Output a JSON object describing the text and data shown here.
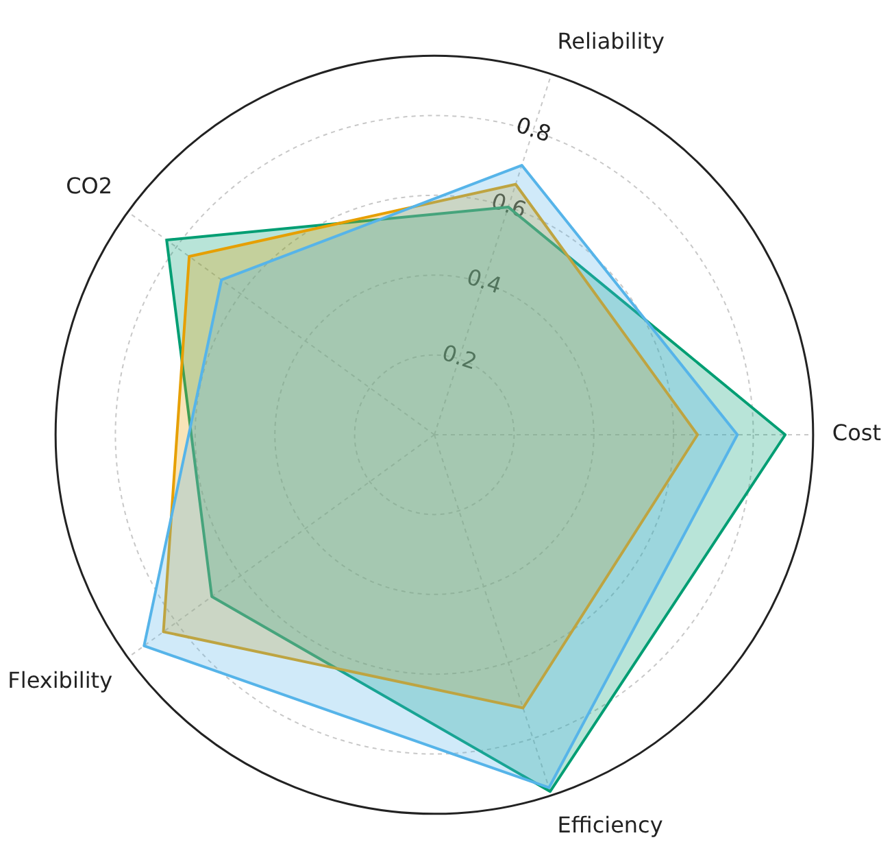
{
  "chart_data": {
    "type": "radar",
    "categories": [
      "Reliability",
      "Cost",
      "Efficiency",
      "Flexibility",
      "CO2"
    ],
    "series": [
      {
        "color": "#56b4e9",
        "values": [
          0.71,
          0.76,
          0.93,
          0.9,
          0.66
        ]
      },
      {
        "color": "#e69f00",
        "values": [
          0.66,
          0.66,
          0.72,
          0.84,
          0.76
        ]
      },
      {
        "color": "#009e73",
        "values": [
          0.6,
          0.88,
          0.94,
          0.69,
          0.83
        ]
      }
    ],
    "ylim": [
      0,
      0.95
    ],
    "yticks": [
      0.2,
      0.4,
      0.6,
      0.8
    ],
    "grid": true,
    "legend": false,
    "marker": "none"
  }
}
